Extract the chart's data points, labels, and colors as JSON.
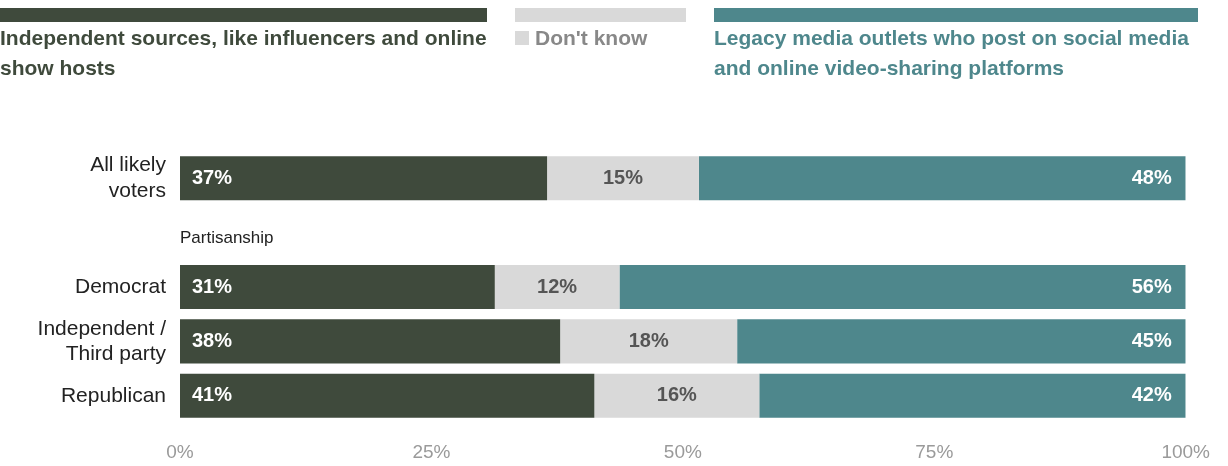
{
  "chart_data": {
    "type": "bar",
    "orientation": "horizontal",
    "stacked": true,
    "categories": [
      "All likely voters",
      null,
      "Democrat",
      "Independent / Third party",
      "Republican"
    ],
    "series": [
      {
        "name": "Independent sources, like influencers and online show hosts",
        "color": "#3f4a3c",
        "values": [
          36.5,
          null,
          31.3,
          37.8,
          41.2
        ],
        "value_labels": [
          "37%",
          null,
          "31%",
          "38%",
          "41%"
        ]
      },
      {
        "name": "Don't know",
        "color": "#d9d9d9",
        "values": [
          15.1,
          null,
          12.4,
          17.6,
          16.4
        ],
        "value_labels": [
          "15%",
          null,
          "12%",
          "18%",
          "16%"
        ]
      },
      {
        "name": "Legacy media outlets who post on social media and online video-sharing platforms",
        "color": "#4e878c",
        "values": [
          48.4,
          null,
          56.3,
          44.6,
          42.4
        ],
        "value_labels": [
          "48%",
          null,
          "56%",
          "45%",
          "42%"
        ]
      }
    ],
    "xlim": [
      0,
      100
    ],
    "xticks": [
      {
        "value": 0,
        "label": "0%"
      },
      {
        "value": 25,
        "label": "25%"
      },
      {
        "value": 50,
        "label": "50%"
      },
      {
        "value": 75,
        "label": "75%"
      },
      {
        "value": 100,
        "label": "100%"
      }
    ],
    "annotations": [
      "Partisanship"
    ],
    "legend": "top",
    "grid": false
  }
}
